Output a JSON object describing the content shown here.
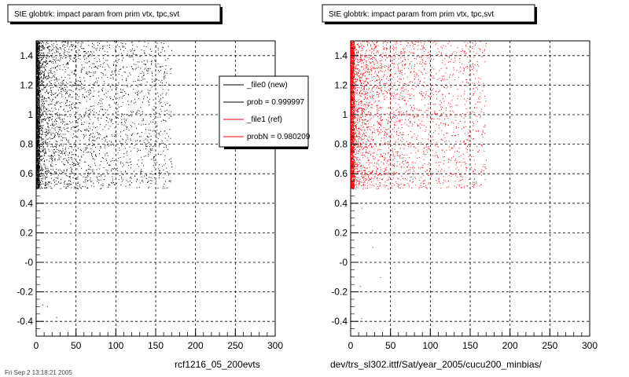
{
  "footer": "Fri Sep 2 13:18:21 2005",
  "legend": {
    "items": [
      {
        "label": "_file0 (new)",
        "color": "#000000"
      },
      {
        "label": "prob = 0.999997",
        "color": "#000000"
      },
      {
        "label": "_file1 (ref)",
        "color": "#ff0000"
      },
      {
        "label": "probN = 0.980209",
        "color": "#ff0000"
      }
    ]
  },
  "chart_data": [
    {
      "type": "scatter",
      "title": "StE globtrk: impact param from prim vtx, tpc,svt",
      "xlabel": "rcf1216_05_200evts",
      "ylabel": "",
      "xlim": [
        0,
        300
      ],
      "ylim": [
        -0.5,
        1.5
      ],
      "xticks": [
        0,
        50,
        100,
        150,
        200,
        250,
        300
      ],
      "yticks": [
        -0.4,
        -0.2,
        0,
        0.2,
        0.4,
        0.6,
        0.8,
        1,
        1.2,
        1.4
      ],
      "ytick_labels": [
        "-0.4",
        "-0.2",
        "-0",
        "0.2",
        "0.4",
        "0.6",
        "0.8",
        "1",
        "1.2",
        "1.4"
      ],
      "grid": true,
      "legend_position": "top-right",
      "series": [
        {
          "color": "#000000",
          "x_range": [
            0,
            170
          ],
          "y_range": [
            0.5,
            1.5
          ],
          "density": "high near x=0, decreasing with x"
        }
      ]
    },
    {
      "type": "scatter",
      "title": "StE globtrk: impact param from prim vtx, tpc,svt",
      "xlabel": "dev/trs_sl302.ittf/Sat/year_2005/cucu200_minbias/",
      "ylabel": "",
      "xlim": [
        0,
        300
      ],
      "ylim": [
        -0.5,
        1.5
      ],
      "xticks": [
        0,
        50,
        100,
        150,
        200,
        250,
        300
      ],
      "yticks": [
        -0.4,
        -0.2,
        0,
        0.2,
        0.4,
        0.6,
        0.8,
        1,
        1.2,
        1.4
      ],
      "ytick_labels": [
        "-0.4",
        "-0.2",
        "-0",
        "0.2",
        "0.4",
        "0.6",
        "0.8",
        "1",
        "1.2",
        "1.4"
      ],
      "grid": true,
      "series": [
        {
          "color": "#ff0000",
          "x_range": [
            0,
            170
          ],
          "y_range": [
            0.5,
            1.5
          ],
          "density": "high near x=0, decreasing with x"
        }
      ]
    }
  ]
}
